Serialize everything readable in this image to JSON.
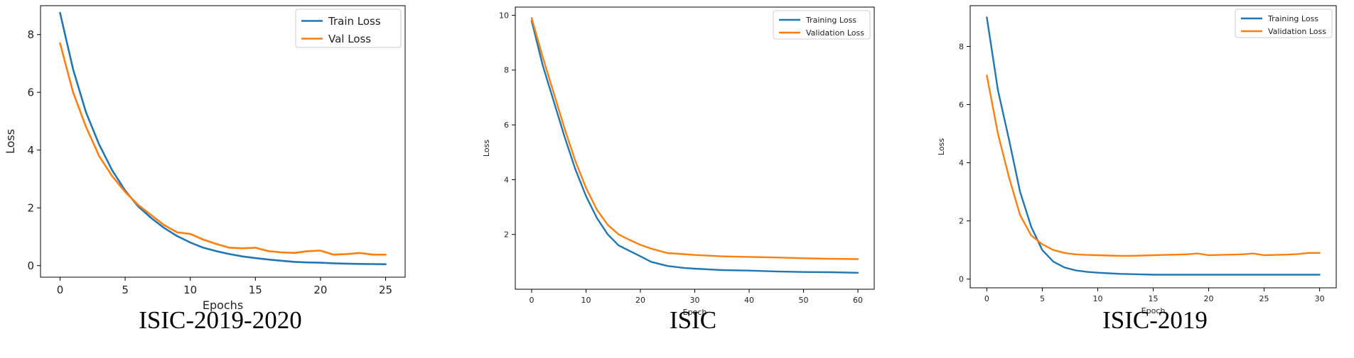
{
  "chart_data": [
    {
      "type": "line",
      "caption": "ISIC-2019-2020",
      "xlabel": "Epochs",
      "ylabel": "Loss",
      "xlim": [
        -1.5,
        26.5
      ],
      "ylim": [
        -0.4,
        9.0
      ],
      "xticks": [
        0,
        5,
        10,
        15,
        20,
        25
      ],
      "yticks": [
        0,
        2,
        4,
        6,
        8
      ],
      "legend": "top-right",
      "grid": false,
      "series": [
        {
          "name": "Train Loss",
          "color": "#1f77b4",
          "x": [
            0,
            1,
            2,
            3,
            4,
            5,
            6,
            7,
            8,
            9,
            10,
            11,
            12,
            13,
            14,
            15,
            16,
            17,
            18,
            19,
            20,
            21,
            22,
            23,
            24,
            25
          ],
          "y": [
            8.75,
            6.8,
            5.3,
            4.2,
            3.3,
            2.6,
            2.05,
            1.65,
            1.3,
            1.02,
            0.8,
            0.62,
            0.5,
            0.4,
            0.32,
            0.26,
            0.21,
            0.17,
            0.13,
            0.11,
            0.1,
            0.08,
            0.07,
            0.06,
            0.055,
            0.05
          ]
        },
        {
          "name": "Val Loss",
          "color": "#ff7f0e",
          "x": [
            0,
            1,
            2,
            3,
            4,
            5,
            6,
            7,
            8,
            9,
            10,
            11,
            12,
            13,
            14,
            15,
            16,
            17,
            18,
            19,
            20,
            21,
            22,
            23,
            24,
            25
          ],
          "y": [
            7.7,
            6.0,
            4.8,
            3.8,
            3.1,
            2.55,
            2.1,
            1.75,
            1.4,
            1.15,
            1.1,
            0.9,
            0.75,
            0.62,
            0.6,
            0.62,
            0.5,
            0.46,
            0.44,
            0.5,
            0.52,
            0.38,
            0.4,
            0.44,
            0.38,
            0.38
          ]
        }
      ]
    },
    {
      "type": "line",
      "caption": "ISIC",
      "xlabel": "Epoch",
      "ylabel": "Loss",
      "xlim": [
        -3,
        63
      ],
      "ylim": [
        0.0,
        10.3
      ],
      "xticks": [
        0,
        10,
        20,
        30,
        40,
        50,
        60
      ],
      "yticks": [
        2,
        4,
        6,
        8,
        10
      ],
      "legend": "top-right",
      "grid": false,
      "series": [
        {
          "name": "Training Loss",
          "color": "#1f77b4",
          "x": [
            0,
            2,
            4,
            6,
            8,
            10,
            12,
            14,
            16,
            18,
            20,
            22,
            25,
            28,
            30,
            35,
            40,
            45,
            50,
            55,
            60
          ],
          "y": [
            9.8,
            8.2,
            6.9,
            5.6,
            4.4,
            3.4,
            2.6,
            2.0,
            1.6,
            1.4,
            1.2,
            1.0,
            0.85,
            0.78,
            0.75,
            0.7,
            0.68,
            0.65,
            0.63,
            0.62,
            0.6
          ]
        },
        {
          "name": "Validation Loss",
          "color": "#ff7f0e",
          "x": [
            0,
            2,
            4,
            6,
            8,
            10,
            12,
            14,
            16,
            18,
            20,
            22,
            25,
            28,
            30,
            35,
            40,
            45,
            50,
            55,
            60
          ],
          "y": [
            9.9,
            8.5,
            7.2,
            5.9,
            4.7,
            3.7,
            2.9,
            2.35,
            2.0,
            1.8,
            1.62,
            1.48,
            1.32,
            1.28,
            1.25,
            1.2,
            1.18,
            1.16,
            1.13,
            1.11,
            1.1
          ]
        }
      ]
    },
    {
      "type": "line",
      "caption": "ISIC-2019",
      "xlabel": "Epoch",
      "ylabel": "Loss",
      "xlim": [
        -1.5,
        31.5
      ],
      "ylim": [
        -0.3,
        9.4
      ],
      "xticks": [
        0,
        5,
        10,
        15,
        20,
        25,
        30
      ],
      "yticks": [
        0,
        2,
        4,
        6,
        8
      ],
      "legend": "top-right",
      "grid": false,
      "series": [
        {
          "name": "Training Loss",
          "color": "#1f77b4",
          "x": [
            0,
            1,
            2,
            3,
            4,
            5,
            6,
            7,
            8,
            9,
            10,
            11,
            12,
            13,
            14,
            15,
            16,
            17,
            18,
            19,
            20,
            21,
            22,
            23,
            24,
            25,
            26,
            27,
            28,
            29,
            30
          ],
          "y": [
            9.0,
            6.5,
            4.8,
            3.0,
            1.8,
            1.0,
            0.6,
            0.4,
            0.3,
            0.25,
            0.22,
            0.2,
            0.18,
            0.17,
            0.16,
            0.15,
            0.15,
            0.15,
            0.15,
            0.15,
            0.15,
            0.15,
            0.15,
            0.15,
            0.15,
            0.15,
            0.15,
            0.15,
            0.15,
            0.15,
            0.15
          ]
        },
        {
          "name": "Validation Loss",
          "color": "#ff7f0e",
          "x": [
            0,
            1,
            2,
            3,
            4,
            5,
            6,
            7,
            8,
            9,
            10,
            11,
            12,
            13,
            14,
            15,
            16,
            17,
            18,
            19,
            20,
            21,
            22,
            23,
            24,
            25,
            26,
            27,
            28,
            29,
            30
          ],
          "y": [
            7.0,
            5.0,
            3.5,
            2.2,
            1.5,
            1.2,
            1.0,
            0.9,
            0.85,
            0.83,
            0.82,
            0.81,
            0.8,
            0.8,
            0.81,
            0.82,
            0.83,
            0.84,
            0.85,
            0.88,
            0.82,
            0.83,
            0.84,
            0.85,
            0.88,
            0.82,
            0.83,
            0.84,
            0.86,
            0.9,
            0.9
          ]
        }
      ]
    }
  ]
}
